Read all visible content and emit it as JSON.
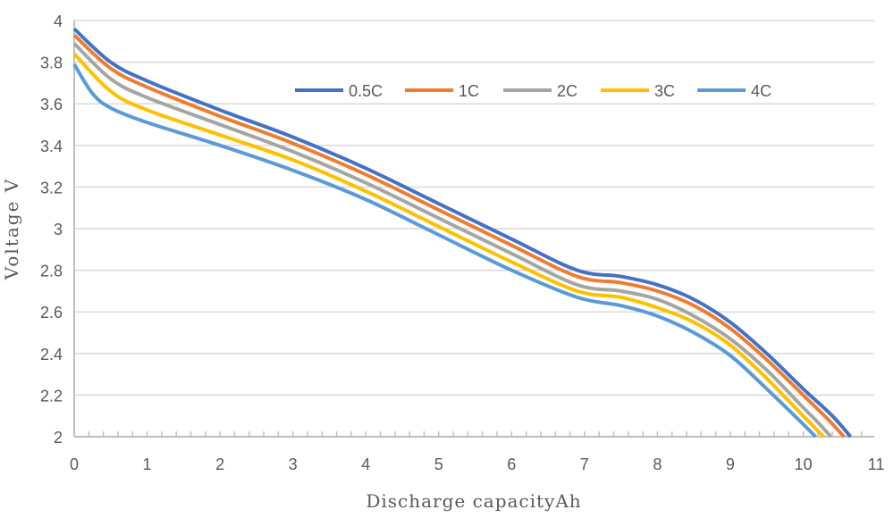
{
  "chart_data": {
    "type": "line",
    "title": "",
    "xlabel": "Discharge capacityAh",
    "ylabel": "Voltage V",
    "xlim": [
      0,
      11
    ],
    "ylim": [
      2,
      4
    ],
    "xticks": [
      "0",
      "1",
      "2",
      "3",
      "4",
      "5",
      "6",
      "7",
      "8",
      "9",
      "10",
      "11"
    ],
    "yticks": [
      "2",
      "2.2",
      "2.4",
      "2.6",
      "2.8",
      "3",
      "3.2",
      "3.4",
      "3.6",
      "3.8",
      "4"
    ],
    "grid": "horizontal",
    "legend": "top-center",
    "series": [
      {
        "name": "0.5C",
        "color": "#4472C4",
        "x": [
          0,
          0.5,
          1,
          2,
          3,
          4,
          5,
          6,
          6.9,
          7.5,
          8,
          8.5,
          9,
          9.5,
          10,
          10.4,
          10.65
        ],
        "y": [
          3.96,
          3.8,
          3.71,
          3.57,
          3.44,
          3.29,
          3.12,
          2.95,
          2.8,
          2.77,
          2.73,
          2.66,
          2.55,
          2.4,
          2.23,
          2.1,
          2.0
        ]
      },
      {
        "name": "1C",
        "color": "#ED7D31",
        "x": [
          0,
          0.5,
          1,
          2,
          3,
          4,
          5,
          6,
          6.9,
          7.5,
          8,
          8.5,
          9,
          9.5,
          10,
          10.35,
          10.56
        ],
        "y": [
          3.93,
          3.77,
          3.68,
          3.54,
          3.41,
          3.26,
          3.09,
          2.92,
          2.77,
          2.74,
          2.7,
          2.63,
          2.52,
          2.37,
          2.2,
          2.08,
          2.0
        ]
      },
      {
        "name": "2C",
        "color": "#A5A5A5",
        "x": [
          0,
          0.5,
          1,
          2,
          3,
          4,
          5,
          6,
          6.9,
          7.5,
          8,
          8.5,
          9,
          9.5,
          10,
          10.2,
          10.38
        ],
        "y": [
          3.89,
          3.72,
          3.63,
          3.5,
          3.37,
          3.22,
          3.05,
          2.88,
          2.73,
          2.7,
          2.66,
          2.58,
          2.47,
          2.32,
          2.14,
          2.07,
          2.0
        ]
      },
      {
        "name": "3C",
        "color": "#FFC000",
        "x": [
          0,
          0.5,
          1,
          2,
          3,
          4,
          5,
          6,
          6.9,
          7.5,
          8,
          8.5,
          9,
          9.5,
          10,
          10.28
        ],
        "y": [
          3.84,
          3.66,
          3.57,
          3.45,
          3.33,
          3.18,
          3.01,
          2.84,
          2.7,
          2.67,
          2.62,
          2.55,
          2.44,
          2.28,
          2.1,
          2.0
        ]
      },
      {
        "name": "4C",
        "color": "#5B9BD5",
        "x": [
          0,
          0.25,
          0.5,
          1,
          2,
          3,
          4,
          5,
          6,
          6.9,
          7.5,
          8,
          8.5,
          9,
          9.5,
          10,
          10.17
        ],
        "y": [
          3.79,
          3.65,
          3.58,
          3.51,
          3.4,
          3.28,
          3.14,
          2.97,
          2.8,
          2.67,
          2.63,
          2.58,
          2.5,
          2.39,
          2.23,
          2.06,
          2.0
        ]
      }
    ]
  }
}
